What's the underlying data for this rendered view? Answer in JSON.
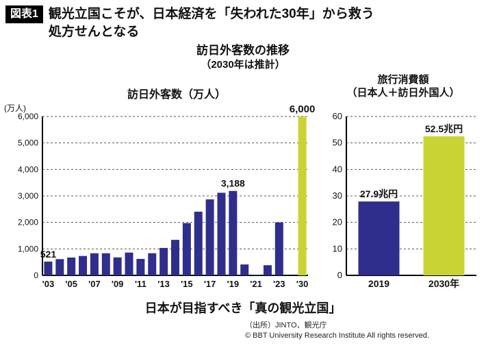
{
  "header": {
    "badge": "図表1",
    "title_line1": "観光立国こそが、日本経済を「失われた30年」から救う",
    "title_line2": "処方せんとなる"
  },
  "subtitle": {
    "line1": "訪日外客数の推移",
    "line2": "（2030年は推計）"
  },
  "chart_data": [
    {
      "type": "bar",
      "title": "訪日外客数（万人）",
      "unit_label": "(万人)",
      "xlabel": "",
      "ylabel": "万人",
      "ylim": [
        0,
        6000
      ],
      "yticks": [
        0,
        1000,
        2000,
        3000,
        4000,
        5000,
        6000
      ],
      "grid": "dashed-horizontal",
      "legend": "none",
      "categories": [
        "'03",
        "'04",
        "'05",
        "'06",
        "'07",
        "'08",
        "'09",
        "'10",
        "'11",
        "'12",
        "'13",
        "'14",
        "'15",
        "'16",
        "'17",
        "'18",
        "'19",
        "'20",
        "'21",
        "'22",
        "'23",
        "",
        "'30"
      ],
      "values": [
        521,
        614,
        673,
        733,
        835,
        835,
        679,
        861,
        622,
        836,
        1036,
        1341,
        1974,
        2404,
        2869,
        3119,
        3188,
        412,
        25,
        383,
        2000,
        null,
        6000
      ],
      "xtick_labels": [
        "'03",
        "'05",
        "'07",
        "'09",
        "'11",
        "'13",
        "'15",
        "'17",
        "'19",
        "'21",
        "'23",
        "'30"
      ],
      "annotations": [
        {
          "index": 0,
          "text": "521",
          "size": 14
        },
        {
          "index": 16,
          "text": "3,188",
          "size": 14
        },
        {
          "index": 22,
          "text": "6,000",
          "size": 15
        }
      ],
      "highlight_index": 22
    },
    {
      "type": "bar",
      "title_line1": "旅行消費額",
      "title_line2": "（日本人＋訪日外国人）",
      "xlabel": "",
      "ylabel": "兆円",
      "ylim": [
        0,
        60
      ],
      "yticks": [
        0,
        10,
        20,
        30,
        40,
        50,
        60
      ],
      "grid": "dashed-horizontal",
      "legend": "none",
      "categories": [
        "2019",
        "2030年"
      ],
      "values": [
        27.9,
        52.5
      ],
      "annotations": [
        {
          "index": 0,
          "text": "27.9兆円",
          "size": 14
        },
        {
          "index": 1,
          "text": "52.5兆円",
          "size": 14
        }
      ],
      "highlight_index": 1
    }
  ],
  "footer": {
    "slogan": "日本が目指すべき「真の観光立国」",
    "source": "（出所）JINTO、観光庁",
    "copyright": "© BBT University Research Institute All rights reserved."
  },
  "colors": {
    "navy": "#2f2e8c",
    "yellow": "#c9d434",
    "grid": "#555555",
    "axis": "#000000"
  }
}
